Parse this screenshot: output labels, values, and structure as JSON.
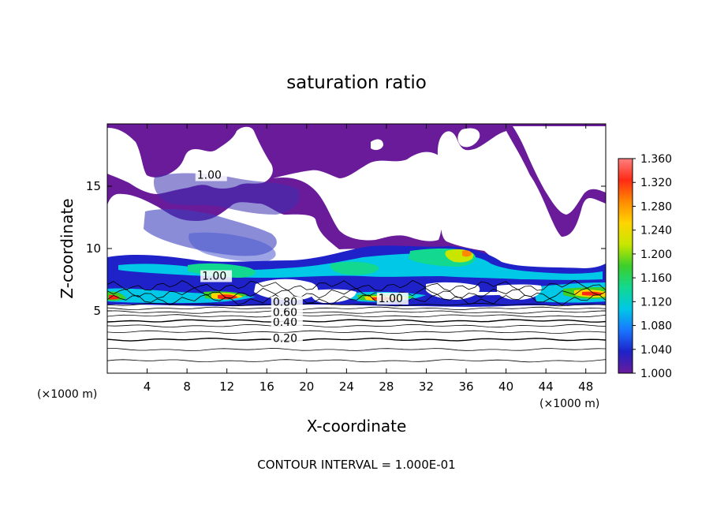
{
  "chart_data": {
    "type": "heatmap",
    "title": "saturation ratio",
    "xlabel": "X-coordinate",
    "ylabel": "Z-coordinate",
    "x_unit": "(×1000 m)",
    "x_unit_right": "(×1000 m)",
    "xlim": [
      0,
      50
    ],
    "ylim": [
      0,
      20
    ],
    "x_ticks": [
      4,
      8,
      12,
      16,
      20,
      24,
      28,
      32,
      36,
      40,
      44,
      48
    ],
    "y_ticks": [
      5,
      10,
      15
    ],
    "colorbar": {
      "min": 1.0,
      "max": 1.36,
      "ticks": [
        "1.360",
        "1.320",
        "1.280",
        "1.240",
        "1.200",
        "1.160",
        "1.120",
        "1.080",
        "1.040",
        "1.000"
      ],
      "colors": [
        "#6a1b9a",
        "#1e22c8",
        "#1976ff",
        "#00c8e6",
        "#12d890",
        "#3ccf2a",
        "#c8e600",
        "#ffd400",
        "#ff8a00",
        "#ff2a14",
        "#ff8080"
      ]
    },
    "contour_labels": [
      {
        "text": "0.20",
        "x": 16.6,
        "z": 2.5
      },
      {
        "text": "0.40",
        "x": 16.6,
        "z": 3.8
      },
      {
        "text": "0.60",
        "x": 16.6,
        "z": 4.6
      },
      {
        "text": "0.80",
        "x": 16.6,
        "z": 5.4
      },
      {
        "text": "1.00",
        "x": 27.2,
        "z": 5.7
      },
      {
        "text": "1.00",
        "x": 9.5,
        "z": 7.5
      },
      {
        "text": "1.00",
        "x": 9.0,
        "z": 15.6
      }
    ],
    "annotation": "CONTOUR INTERVAL = 1.000E-01"
  }
}
